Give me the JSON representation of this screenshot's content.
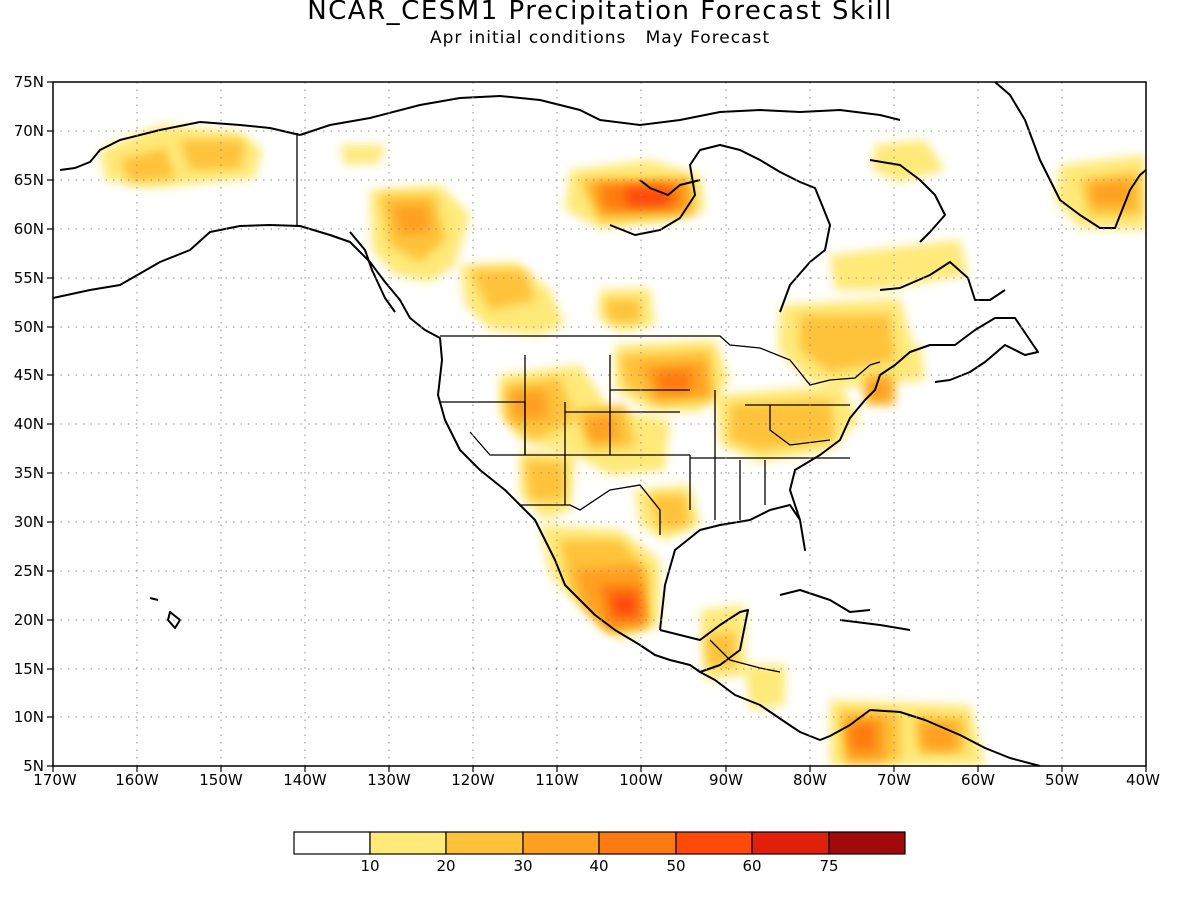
{
  "title": "NCAR_CESM1 Precipitation Forecast Skill",
  "subtitle": "Apr initial conditions   May Forecast",
  "lat_labels": [
    "75N",
    "70N",
    "65N",
    "60N",
    "55N",
    "50N",
    "45N",
    "40N",
    "35N",
    "30N",
    "25N",
    "20N",
    "15N",
    "10N",
    "5N"
  ],
  "lon_labels": [
    "170W",
    "160W",
    "150W",
    "140W",
    "130W",
    "120W",
    "110W",
    "100W",
    "90W",
    "80W",
    "70W",
    "60W",
    "50W",
    "40W"
  ],
  "legend": {
    "labels": [
      "10",
      "20",
      "30",
      "40",
      "50",
      "60",
      "75"
    ],
    "colors": [
      "#ffffff",
      "#ffe978",
      "#ffc23a",
      "#ffa020",
      "#ff7a10",
      "#ff4a0a",
      "#e0200a",
      "#a00a0a"
    ]
  },
  "map_extent": {
    "lon": [
      -170,
      -40
    ],
    "lat": [
      5,
      75
    ]
  }
}
